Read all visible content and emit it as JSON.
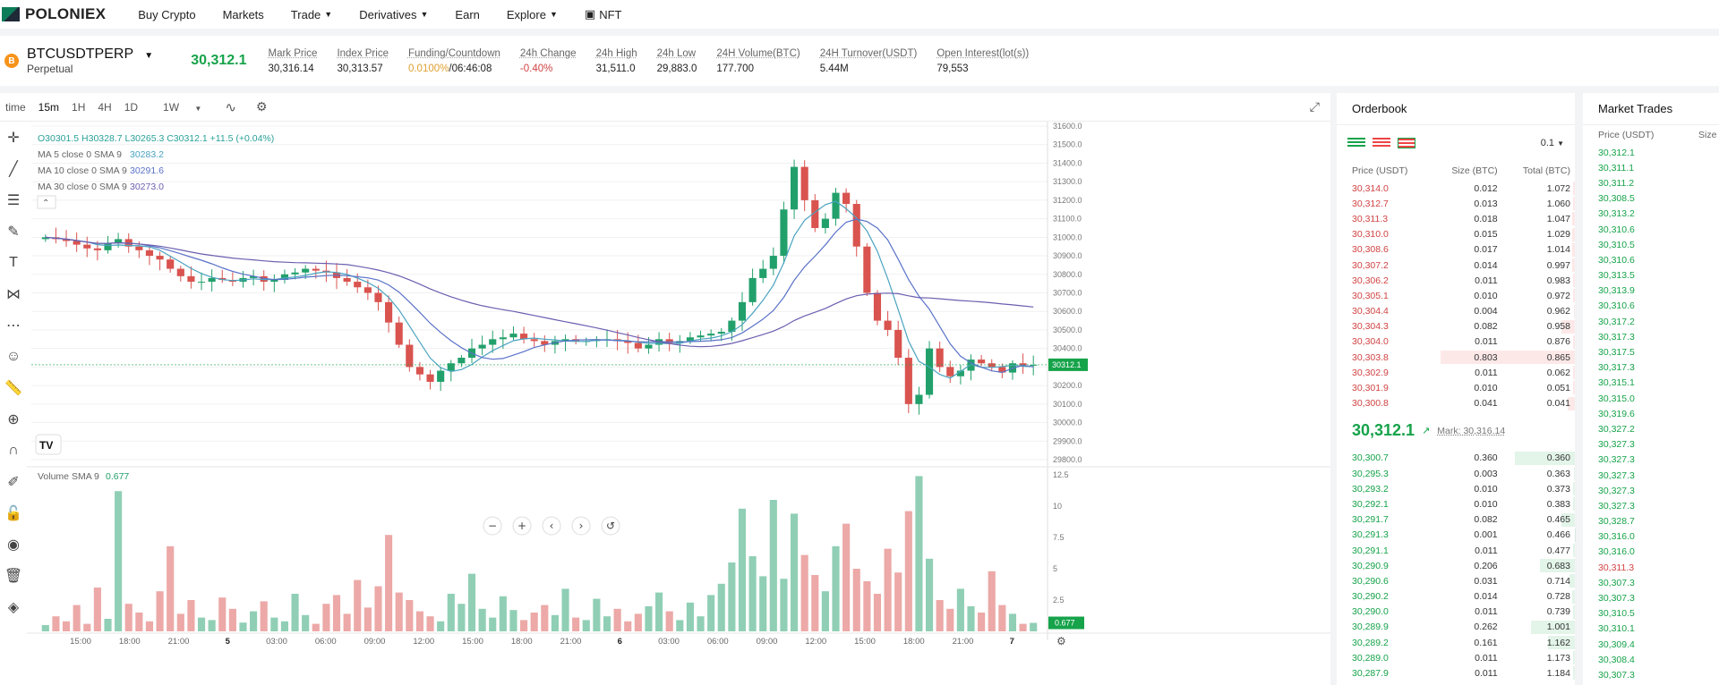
{
  "nav": {
    "logo": "POLONIEX",
    "items": [
      "Buy Crypto",
      "Markets",
      "Trade",
      "Derivatives",
      "Earn",
      "Explore",
      "NFT"
    ]
  },
  "ticker": {
    "coin_icon": "B",
    "symbol": "BTCUSDTPERP",
    "type": "Perpetual",
    "last_price": "30,312.1",
    "stats": [
      {
        "label": "Mark Price",
        "value": "30,316.14"
      },
      {
        "label": "Index Price",
        "value": "30,313.57"
      },
      {
        "label": "Funding/Countdown",
        "value": "0.0100%",
        "value2": "/06:46:08"
      },
      {
        "label": "24h Change",
        "value": "-0.40%"
      },
      {
        "label": "24h High",
        "value": "31,511.0"
      },
      {
        "label": "24h Low",
        "value": "29,883.0"
      },
      {
        "label": "24H Volume(BTC)",
        "value": "177.700"
      },
      {
        "label": "24H Turnover(USDT)",
        "value": "5.44M"
      },
      {
        "label": "Open Interest(lot(s))",
        "value": "79,553"
      }
    ]
  },
  "toolbar": {
    "intervals": [
      "time",
      "15m",
      "1H",
      "4H",
      "1D",
      "1W"
    ],
    "active": "15m"
  },
  "indicators": {
    "ohlc": "O30301.5  H30328.7  L30265.3  C30312.1  +11.5 (+0.04%)",
    "ma5": "MA 5 close 0 SMA 9",
    "ma5v": "30283.2",
    "ma10": "MA 10 close 0 SMA 9",
    "ma10v": "30291.6",
    "ma30": "MA 30 close 0 SMA 9",
    "ma30v": "30273.0",
    "vol": "Volume SMA 9",
    "volv": "0.677"
  },
  "chart_data": {
    "type": "candlestick",
    "ylim": [
      29800,
      31600
    ],
    "price_ticks": [
      "31600.0",
      "31500.0",
      "31400.0",
      "31300.0",
      "31200.0",
      "31100.0",
      "31000.0",
      "30900.0",
      "30800.0",
      "30700.0",
      "30600.0",
      "30500.0",
      "30400.0",
      "30300.0",
      "30200.0",
      "30100.0",
      "30000.0",
      "29900.0",
      "29800.0"
    ],
    "last_label": "30312.1",
    "vol_ticks": [
      "12.5",
      "10",
      "7.5",
      "5",
      "2.5"
    ],
    "vol_last": "0.677",
    "x_ticks": [
      "15:00",
      "18:00",
      "21:00",
      "5",
      "03:00",
      "06:00",
      "09:00",
      "12:00",
      "15:00",
      "18:00",
      "21:00",
      "6",
      "03:00",
      "06:00",
      "09:00",
      "12:00",
      "15:00",
      "18:00",
      "21:00",
      "7"
    ],
    "close": [
      31000,
      30990,
      30980,
      30960,
      30940,
      30930,
      30970,
      30990,
      30950,
      30930,
      30900,
      30880,
      30830,
      30790,
      30760,
      30760,
      30780,
      30770,
      30760,
      30780,
      30790,
      30760,
      30770,
      30800,
      30810,
      30830,
      30820,
      30810,
      30780,
      30760,
      30730,
      30700,
      30650,
      30540,
      30420,
      30300,
      30260,
      30220,
      30280,
      30320,
      30350,
      30400,
      30420,
      30450,
      30460,
      30480,
      30450,
      30440,
      30420,
      30440,
      30450,
      30440,
      30440,
      30450,
      30450,
      30440,
      30430,
      30400,
      30420,
      30450,
      30430,
      30440,
      30460,
      30470,
      30480,
      30490,
      30550,
      30650,
      30780,
      30830,
      30900,
      31150,
      31380,
      31200,
      31050,
      31100,
      31240,
      31180,
      30950,
      30700,
      30550,
      30500,
      30350,
      30100,
      30150,
      30400,
      30300,
      30250,
      30280,
      30340,
      30320,
      30300,
      30270,
      30320,
      30310,
      30312
    ],
    "volume": [
      0.5,
      1.2,
      0.8,
      2.1,
      0.6,
      3.5,
      1.0,
      11.2,
      2.2,
      1.5,
      0.8,
      3.2,
      6.8,
      1.4,
      2.5,
      1.1,
      0.9,
      2.7,
      1.8,
      0.7,
      1.6,
      2.4,
      1.1,
      0.8,
      3.0,
      1.3,
      0.6,
      2.2,
      2.9,
      1.4,
      4.1,
      1.9,
      3.6,
      7.7,
      3.1,
      2.5,
      1.6,
      1.2,
      0.8,
      3.0,
      2.2,
      4.6,
      1.8,
      1.1,
      2.8,
      1.7,
      0.9,
      1.5,
      2.1,
      1.3,
      3.4,
      1.1,
      0.9,
      2.6,
      1.2,
      1.8,
      0.8,
      1.4,
      2.0,
      3.1,
      1.6,
      0.9,
      2.3,
      1.2,
      2.9,
      3.8,
      5.5,
      9.8,
      6.0,
      4.4,
      10.5,
      4.2,
      9.4,
      6.1,
      4.5,
      3.2,
      6.8,
      8.6,
      5.0,
      4.0,
      3.0,
      6.6,
      4.7,
      9.6,
      12.4,
      5.8,
      2.5,
      1.8,
      3.4,
      2.0,
      1.5,
      4.8,
      2.1,
      1.4,
      0.6,
      0.677
    ]
  },
  "chart_controls": [
    "−",
    "+",
    "‹",
    "›",
    "↺"
  ],
  "orderbook": {
    "title": "Orderbook",
    "step": "0.1",
    "headers": [
      "Price (USDT)",
      "Size (BTC)",
      "Total (BTC)"
    ],
    "asks": [
      [
        "30,314.0",
        "0.012",
        "1.072"
      ],
      [
        "30,312.7",
        "0.013",
        "1.060"
      ],
      [
        "30,311.3",
        "0.018",
        "1.047"
      ],
      [
        "30,310.0",
        "0.015",
        "1.029"
      ],
      [
        "30,308.6",
        "0.017",
        "1.014"
      ],
      [
        "30,307.2",
        "0.014",
        "0.997"
      ],
      [
        "30,306.2",
        "0.011",
        "0.983"
      ],
      [
        "30,305.1",
        "0.010",
        "0.972"
      ],
      [
        "30,304.4",
        "0.004",
        "0.962"
      ],
      [
        "30,304.3",
        "0.082",
        "0.958"
      ],
      [
        "30,304.0",
        "0.011",
        "0.876"
      ],
      [
        "30,303.8",
        "0.803",
        "0.865"
      ],
      [
        "30,302.9",
        "0.011",
        "0.062"
      ],
      [
        "30,301.9",
        "0.010",
        "0.051"
      ],
      [
        "30,300.8",
        "0.041",
        "0.041"
      ]
    ],
    "mid_price": "30,312.1",
    "mark": "Mark: 30,316.14",
    "bids": [
      [
        "30,300.7",
        "0.360",
        "0.360"
      ],
      [
        "30,295.3",
        "0.003",
        "0.363"
      ],
      [
        "30,293.2",
        "0.010",
        "0.373"
      ],
      [
        "30,292.1",
        "0.010",
        "0.383"
      ],
      [
        "30,291.7",
        "0.082",
        "0.465"
      ],
      [
        "30,291.3",
        "0.001",
        "0.466"
      ],
      [
        "30,291.1",
        "0.011",
        "0.477"
      ],
      [
        "30,290.9",
        "0.206",
        "0.683"
      ],
      [
        "30,290.6",
        "0.031",
        "0.714"
      ],
      [
        "30,290.2",
        "0.014",
        "0.728"
      ],
      [
        "30,290.0",
        "0.011",
        "0.739"
      ],
      [
        "30,289.9",
        "0.262",
        "1.001"
      ],
      [
        "30,289.2",
        "0.161",
        "1.162"
      ],
      [
        "30,289.0",
        "0.011",
        "1.173"
      ],
      [
        "30,287.9",
        "0.011",
        "1.184"
      ]
    ]
  },
  "market_trades": {
    "title": "Market Trades",
    "headers": [
      "Price (USDT)",
      "Size"
    ],
    "rows": [
      [
        "30,312.1",
        "g"
      ],
      [
        "30,311.1",
        "g"
      ],
      [
        "30,311.2",
        "g"
      ],
      [
        "30,308.5",
        "g"
      ],
      [
        "30,313.2",
        "g"
      ],
      [
        "30,310.6",
        "g"
      ],
      [
        "30,310.5",
        "g"
      ],
      [
        "30,310.6",
        "g"
      ],
      [
        "30,313.5",
        "g"
      ],
      [
        "30,313.9",
        "g"
      ],
      [
        "30,310.6",
        "g"
      ],
      [
        "30,317.2",
        "g"
      ],
      [
        "30,317.3",
        "g"
      ],
      [
        "30,317.5",
        "g"
      ],
      [
        "30,317.3",
        "g"
      ],
      [
        "30,315.1",
        "g"
      ],
      [
        "30,315.0",
        "g"
      ],
      [
        "30,319.6",
        "g"
      ],
      [
        "30,327.2",
        "g"
      ],
      [
        "30,327.3",
        "g"
      ],
      [
        "30,327.3",
        "g"
      ],
      [
        "30,327.3",
        "g"
      ],
      [
        "30,327.3",
        "g"
      ],
      [
        "30,327.3",
        "g"
      ],
      [
        "30,328.7",
        "g"
      ],
      [
        "30,316.0",
        "g"
      ],
      [
        "30,316.0",
        "g"
      ],
      [
        "30,311.3",
        "r"
      ],
      [
        "30,307.3",
        "g"
      ],
      [
        "30,307.3",
        "g"
      ],
      [
        "30,310.5",
        "g"
      ],
      [
        "30,310.1",
        "g"
      ],
      [
        "30,309.4",
        "g"
      ],
      [
        "30,308.4",
        "g"
      ],
      [
        "30,307.3",
        "g"
      ]
    ]
  }
}
